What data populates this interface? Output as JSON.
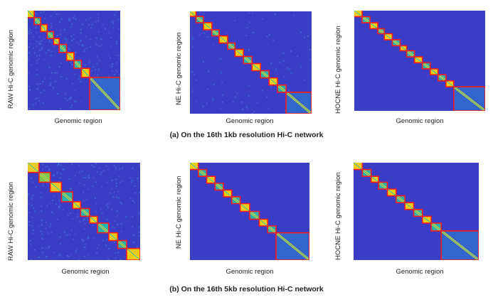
{
  "figure": {
    "rows": [
      {
        "caption": "(a) On the 16th 1kb resolution Hi-C network",
        "panels": [
          {
            "ylabel": "RAW Hi-C genomic region",
            "xlabel": "Genomic region",
            "style": "raw",
            "boundaries": [
              0,
              0.07,
              0.14,
              0.21,
              0.28,
              0.34,
              0.42,
              0.5,
              0.58,
              0.67,
              1.0
            ]
          },
          {
            "ylabel": "NE Hi-C genomic region",
            "xlabel": "Genomic region",
            "style": "ne",
            "boundaries": [
              0,
              0.05,
              0.11,
              0.18,
              0.24,
              0.31,
              0.37,
              0.44,
              0.51,
              0.58,
              0.65,
              0.72,
              0.79,
              1.0
            ]
          },
          {
            "ylabel": "HOCNE Hi-C genomic region",
            "xlabel": "Genomic region",
            "style": "hocne",
            "boundaries": [
              0,
              0.06,
              0.12,
              0.18,
              0.23,
              0.29,
              0.35,
              0.4,
              0.46,
              0.52,
              0.58,
              0.64,
              0.7,
              0.76,
              1.0
            ]
          }
        ]
      },
      {
        "caption": "(b) On the 16th 5kb resolution Hi-C network",
        "panels": [
          {
            "ylabel": "RAW Hi-C genomic region",
            "xlabel": "Genomic region",
            "style": "raw5",
            "boundaries": [
              0,
              0.1,
              0.2,
              0.3,
              0.4,
              0.47,
              0.55,
              0.62,
              0.72,
              0.8,
              0.88,
              1.0
            ]
          },
          {
            "ylabel": "NE Hi-C genomic region",
            "xlabel": "Genomic region",
            "style": "ne5",
            "boundaries": [
              0,
              0.07,
              0.14,
              0.21,
              0.28,
              0.35,
              0.42,
              0.5,
              0.58,
              0.65,
              0.72,
              1.0
            ]
          },
          {
            "ylabel": "HOCNE Hi-C genomic region",
            "xlabel": "Genomic region",
            "style": "hocne5",
            "boundaries": [
              0,
              0.07,
              0.14,
              0.2,
              0.27,
              0.34,
              0.41,
              0.48,
              0.55,
              0.62,
              0.7,
              1.0
            ]
          }
        ]
      }
    ]
  },
  "colors": {
    "background": "#3b3ec4",
    "diagonal": "#ffe600",
    "mid": "#22a6c8",
    "domain_border": "#ff1a1a"
  }
}
